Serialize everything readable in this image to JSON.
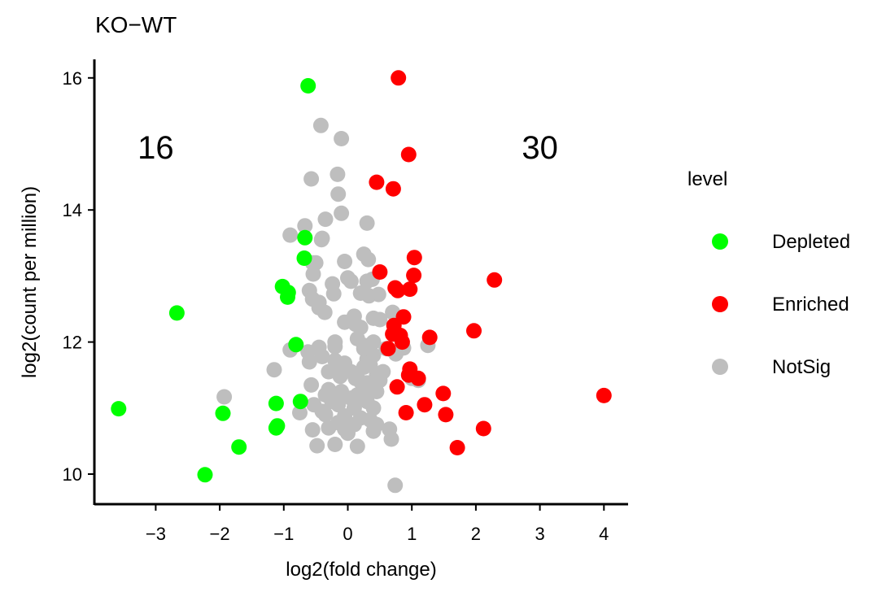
{
  "chart_data": {
    "type": "scatter",
    "title": "KO−WT",
    "xlabel": "log2(fold change)",
    "ylabel": "log2(count per million)",
    "xlim": [
      -3.9,
      4.4
    ],
    "ylim": [
      9.6,
      16.3
    ],
    "xticks": [
      -3,
      -2,
      -1,
      0,
      1,
      2,
      3,
      4
    ],
    "xtick_labels": [
      "−3",
      "−2",
      "−1",
      "0",
      "1",
      "2",
      "3",
      "4"
    ],
    "yticks": [
      10,
      12,
      14,
      16
    ],
    "ytick_labels": [
      "10",
      "12",
      "14",
      "16"
    ],
    "grid": false,
    "legend": {
      "title": "level",
      "placement": "right"
    },
    "annotations": [
      {
        "text": "16",
        "x": -3.0,
        "y": 14.95
      },
      {
        "text": "30",
        "x": 3.0,
        "y": 14.95
      }
    ],
    "series": [
      {
        "name": "Depleted",
        "color": "#00ff00",
        "points": [
          [
            -0.62,
            15.88
          ],
          [
            -0.67,
            13.58
          ],
          [
            -0.68,
            13.27
          ],
          [
            -1.02,
            12.84
          ],
          [
            -0.93,
            12.75
          ],
          [
            -0.94,
            12.68
          ],
          [
            -2.67,
            12.44
          ],
          [
            -0.81,
            11.96
          ],
          [
            -0.74,
            11.1
          ],
          [
            -1.12,
            11.07
          ],
          [
            -3.58,
            10.99
          ],
          [
            -1.95,
            10.92
          ],
          [
            -1.1,
            10.73
          ],
          [
            -1.12,
            10.7
          ],
          [
            -1.7,
            10.41
          ],
          [
            -2.23,
            9.99
          ]
        ]
      },
      {
        "name": "Enriched",
        "color": "#ff0000",
        "points": [
          [
            0.79,
            16.0
          ],
          [
            0.95,
            14.84
          ],
          [
            0.45,
            14.42
          ],
          [
            0.71,
            14.32
          ],
          [
            1.04,
            13.28
          ],
          [
            0.5,
            13.06
          ],
          [
            1.03,
            13.01
          ],
          [
            2.29,
            12.94
          ],
          [
            0.74,
            12.82
          ],
          [
            0.78,
            12.78
          ],
          [
            0.97,
            12.8
          ],
          [
            0.87,
            12.38
          ],
          [
            0.72,
            12.25
          ],
          [
            0.7,
            12.12
          ],
          [
            1.97,
            12.17
          ],
          [
            1.28,
            12.07
          ],
          [
            0.85,
            12.0
          ],
          [
            0.97,
            11.59
          ],
          [
            0.77,
            11.32
          ],
          [
            1.49,
            11.22
          ],
          [
            1.2,
            11.05
          ],
          [
            0.91,
            10.93
          ],
          [
            1.53,
            10.9
          ],
          [
            2.12,
            10.69
          ],
          [
            1.71,
            10.4
          ],
          [
            4.0,
            11.19
          ],
          [
            0.82,
            12.1
          ],
          [
            0.95,
            11.5
          ],
          [
            0.63,
            11.9
          ],
          [
            1.1,
            11.45
          ]
        ]
      },
      {
        "name": "NotSig",
        "color": "#bebebe",
        "points": [
          [
            -0.42,
            15.28
          ],
          [
            -0.1,
            15.08
          ],
          [
            -0.16,
            14.54
          ],
          [
            -0.57,
            14.47
          ],
          [
            -0.15,
            14.24
          ],
          [
            -0.1,
            13.95
          ],
          [
            -0.35,
            13.86
          ],
          [
            -0.67,
            13.76
          ],
          [
            0.3,
            13.8
          ],
          [
            -0.9,
            13.62
          ],
          [
            -0.41,
            13.55
          ],
          [
            -0.4,
            13.57
          ],
          [
            0.25,
            13.33
          ],
          [
            0.32,
            13.25
          ],
          [
            -0.5,
            13.2
          ],
          [
            -0.55,
            13.2
          ],
          [
            -0.05,
            13.22
          ],
          [
            0.0,
            12.97
          ],
          [
            -0.54,
            13.03
          ],
          [
            0.05,
            12.92
          ],
          [
            0.3,
            12.92
          ],
          [
            0.38,
            12.95
          ],
          [
            -0.24,
            12.88
          ],
          [
            -0.6,
            12.78
          ],
          [
            0.2,
            12.74
          ],
          [
            0.48,
            12.72
          ],
          [
            -0.22,
            12.73
          ],
          [
            0.33,
            12.7
          ],
          [
            -0.45,
            12.6
          ],
          [
            -0.55,
            12.65
          ],
          [
            -0.36,
            12.45
          ],
          [
            -0.45,
            12.52
          ],
          [
            0.7,
            12.45
          ],
          [
            0.1,
            12.39
          ],
          [
            0.4,
            12.36
          ],
          [
            0.5,
            12.34
          ],
          [
            0.12,
            12.27
          ],
          [
            0.2,
            12.22
          ],
          [
            -0.05,
            12.3
          ],
          [
            0.79,
            12.1
          ],
          [
            0.15,
            12.05
          ],
          [
            0.4,
            12.0
          ],
          [
            0.25,
            11.95
          ],
          [
            0.6,
            11.9
          ],
          [
            1.25,
            11.95
          ],
          [
            -0.2,
            11.93
          ],
          [
            -0.45,
            11.92
          ],
          [
            -0.9,
            11.88
          ],
          [
            -0.62,
            11.85
          ],
          [
            0.4,
            11.8
          ],
          [
            0.87,
            11.91
          ],
          [
            0.75,
            11.82
          ],
          [
            -0.4,
            11.78
          ],
          [
            -0.2,
            11.72
          ],
          [
            0.3,
            11.74
          ],
          [
            -0.6,
            11.7
          ],
          [
            -0.05,
            11.68
          ],
          [
            0.25,
            11.62
          ],
          [
            0.55,
            11.55
          ],
          [
            0.45,
            11.5
          ],
          [
            -0.3,
            11.55
          ],
          [
            -1.15,
            11.58
          ],
          [
            -0.12,
            11.48
          ],
          [
            0.12,
            11.45
          ],
          [
            0.5,
            11.42
          ],
          [
            1.0,
            11.45
          ],
          [
            1.1,
            11.42
          ],
          [
            0.3,
            11.38
          ],
          [
            -0.57,
            11.35
          ],
          [
            0.35,
            11.3
          ],
          [
            -0.3,
            11.28
          ],
          [
            0.45,
            11.25
          ],
          [
            0.15,
            11.2
          ],
          [
            -0.35,
            11.2
          ],
          [
            0.22,
            11.15
          ],
          [
            -1.93,
            11.17
          ],
          [
            -0.53,
            11.05
          ],
          [
            -0.15,
            11.05
          ],
          [
            0.1,
            11.0
          ],
          [
            0.4,
            11.0
          ],
          [
            -0.75,
            10.93
          ],
          [
            -0.35,
            10.9
          ],
          [
            -0.05,
            10.88
          ],
          [
            0.2,
            10.85
          ],
          [
            0.35,
            10.82
          ],
          [
            -0.15,
            10.78
          ],
          [
            0.45,
            10.75
          ],
          [
            -0.3,
            10.7
          ],
          [
            -0.05,
            10.68
          ],
          [
            0.65,
            10.68
          ],
          [
            0.4,
            10.65
          ],
          [
            -0.55,
            10.67
          ],
          [
            0.0,
            10.62
          ],
          [
            0.68,
            10.53
          ],
          [
            -0.2,
            10.45
          ],
          [
            -0.48,
            10.43
          ],
          [
            0.15,
            10.42
          ],
          [
            0.74,
            9.83
          ],
          [
            -0.1,
            11.25
          ],
          [
            0.05,
            11.15
          ],
          [
            0.2,
            11.4
          ],
          [
            -0.25,
            11.1
          ],
          [
            0.3,
            11.1
          ],
          [
            -0.4,
            10.95
          ],
          [
            0.1,
            10.75
          ],
          [
            -0.2,
            12.0
          ],
          [
            0.25,
            11.9
          ],
          [
            -0.15,
            11.6
          ],
          [
            0.05,
            11.55
          ],
          [
            0.35,
            11.65
          ]
        ]
      }
    ]
  }
}
